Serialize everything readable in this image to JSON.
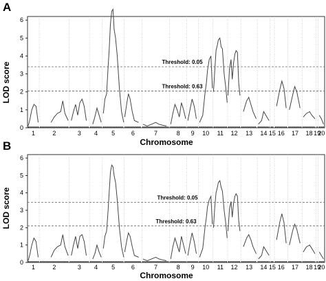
{
  "chart_data": [
    {
      "type": "line",
      "panel": "A",
      "ylabel": "LOD score",
      "xlabel": "Chromosome",
      "ylim": [
        0,
        6.2
      ],
      "yticks": [
        "0",
        "1",
        "2",
        "3",
        "4",
        "5",
        "6"
      ],
      "grid": "vertical dotted chromosome boundaries",
      "chromosomes": [
        "1",
        "2",
        "3",
        "4",
        "5",
        "6",
        "7",
        "8",
        "9",
        "10",
        "11",
        "12",
        "13",
        "14",
        "15",
        "16",
        "17",
        "18",
        "19",
        "20"
      ],
      "thresholds": [
        {
          "label": "Threshold: 0.05",
          "value": 3.4
        },
        {
          "label": "Threshold: 0.63",
          "value": 2.05
        }
      ],
      "series": [
        {
          "values": [
            [
              0.03,
              0.1
            ],
            [
              0.1,
              0.4
            ],
            [
              0.2,
              1.0
            ],
            [
              0.3,
              1.3
            ],
            [
              0.4,
              1.2
            ],
            [
              0.5,
              0.3
            ],
            [
              1.1,
              0.3
            ],
            [
              1.25,
              0.6
            ],
            [
              1.4,
              0.8
            ],
            [
              1.55,
              0.9
            ],
            [
              1.65,
              1.5
            ],
            [
              1.75,
              0.8
            ],
            [
              1.9,
              0.4
            ],
            [
              2.05,
              0.4
            ],
            [
              2.15,
              0.9
            ],
            [
              2.25,
              1.3
            ],
            [
              2.35,
              0.7
            ],
            [
              2.45,
              1.4
            ],
            [
              2.55,
              1.6
            ],
            [
              2.65,
              1.2
            ],
            [
              2.75,
              0.4
            ],
            [
              3.05,
              0.2
            ],
            [
              3.15,
              0.6
            ],
            [
              3.25,
              1.1
            ],
            [
              3.35,
              0.7
            ],
            [
              3.45,
              0.3
            ],
            [
              3.55,
              0.8
            ],
            [
              3.62,
              1.6
            ],
            [
              3.7,
              1.9
            ],
            [
              3.77,
              3.4
            ],
            [
              3.82,
              4.3
            ],
            [
              3.88,
              5.8
            ],
            [
              3.94,
              6.5
            ],
            [
              4.0,
              6.6
            ],
            [
              4.05,
              5.5
            ],
            [
              4.12,
              5.0
            ],
            [
              4.2,
              4.0
            ],
            [
              4.3,
              2.2
            ],
            [
              4.4,
              0.9
            ],
            [
              4.5,
              0.3
            ],
            [
              4.55,
              0.6
            ],
            [
              4.65,
              1.4
            ],
            [
              4.72,
              1.9
            ],
            [
              4.8,
              1.6
            ],
            [
              4.9,
              0.9
            ],
            [
              5.0,
              0.4
            ],
            [
              5.2,
              0.3
            ],
            [
              5.4,
              0.2
            ],
            [
              5.6,
              0.1
            ],
            [
              5.8,
              0.2
            ],
            [
              6.0,
              0.3
            ],
            [
              6.15,
              0.2
            ],
            [
              6.3,
              0.15
            ],
            [
              6.5,
              0.1
            ],
            [
              6.7,
              0.2
            ],
            [
              6.8,
              0.8
            ],
            [
              6.9,
              1.3
            ],
            [
              7.0,
              1.0
            ],
            [
              7.1,
              0.6
            ],
            [
              7.2,
              1.4
            ],
            [
              7.3,
              1.0
            ],
            [
              7.4,
              0.5
            ],
            [
              7.5,
              0.4
            ],
            [
              7.6,
              1.0
            ],
            [
              7.7,
              1.6
            ],
            [
              7.8,
              1.2
            ],
            [
              7.9,
              0.5
            ],
            [
              8.05,
              0.3
            ],
            [
              8.2,
              0.7
            ],
            [
              8.3,
              1.9
            ],
            [
              8.37,
              2.5
            ],
            [
              8.42,
              3.2
            ],
            [
              8.5,
              3.8
            ],
            [
              8.58,
              4.0
            ],
            [
              8.65,
              2.2
            ],
            [
              8.7,
              2.0
            ],
            [
              8.76,
              3.2
            ],
            [
              8.82,
              4.3
            ],
            [
              8.88,
              4.6
            ],
            [
              8.93,
              4.9
            ],
            [
              9.0,
              5.0
            ],
            [
              9.06,
              4.5
            ],
            [
              9.12,
              4.4
            ],
            [
              9.2,
              3.0
            ],
            [
              9.28,
              2.2
            ],
            [
              9.34,
              1.4
            ],
            [
              9.38,
              1.8
            ],
            [
              9.45,
              3.3
            ],
            [
              9.52,
              3.8
            ],
            [
              9.58,
              2.7
            ],
            [
              9.64,
              3.6
            ],
            [
              9.7,
              4.1
            ],
            [
              9.76,
              4.3
            ],
            [
              9.82,
              4.2
            ],
            [
              9.88,
              2.5
            ],
            [
              9.94,
              1.8
            ],
            [
              10.1,
              0.9
            ],
            [
              10.25,
              1.5
            ],
            [
              10.35,
              1.7
            ],
            [
              10.45,
              1.3
            ],
            [
              10.55,
              0.9
            ],
            [
              10.7,
              0.5
            ],
            [
              10.8,
              0.2
            ],
            [
              10.95,
              0.4
            ],
            [
              11.05,
              0.9
            ],
            [
              11.15,
              0.7
            ],
            [
              11.3,
              0.4
            ],
            [
              11.5,
              0.7
            ],
            [
              11.65,
              1.2
            ],
            [
              11.8,
              2.1
            ],
            [
              11.9,
              2.6
            ],
            [
              12.0,
              2.2
            ],
            [
              12.1,
              1.1
            ],
            [
              12.25,
              1.0
            ],
            [
              12.4,
              1.8
            ],
            [
              12.5,
              2.3
            ],
            [
              12.6,
              2.0
            ],
            [
              12.75,
              1.1
            ],
            [
              12.9,
              0.6
            ],
            [
              13.05,
              0.8
            ],
            [
              13.2,
              0.9
            ],
            [
              13.3,
              0.7
            ],
            [
              13.45,
              0.5
            ],
            [
              13.55,
              0.3
            ],
            [
              13.65,
              0.7
            ],
            [
              13.75,
              0.5
            ],
            [
              13.85,
              0.2
            ]
          ]
        }
      ]
    },
    {
      "type": "line",
      "panel": "B",
      "ylabel": "LOD score",
      "xlabel": "Chromosome",
      "ylim": [
        0,
        6.2
      ],
      "yticks": [
        "0",
        "1",
        "2",
        "3",
        "4",
        "5",
        "6"
      ],
      "grid": "vertical dotted chromosome boundaries",
      "chromosomes": [
        "1",
        "2",
        "3",
        "4",
        "5",
        "6",
        "7",
        "8",
        "9",
        "10",
        "11",
        "12",
        "13",
        "14",
        "15",
        "16",
        "17",
        "18",
        "19",
        "20"
      ],
      "thresholds": [
        {
          "label": "Threshold: 0.05",
          "value": 3.45
        },
        {
          "label": "Threshold: 0.63",
          "value": 2.1
        }
      ],
      "series": [
        {
          "values": [
            [
              0.03,
              0.1
            ],
            [
              0.1,
              0.4
            ],
            [
              0.2,
              1.0
            ],
            [
              0.3,
              1.4
            ],
            [
              0.4,
              1.2
            ],
            [
              0.5,
              0.3
            ],
            [
              1.1,
              0.3
            ],
            [
              1.25,
              0.7
            ],
            [
              1.4,
              0.9
            ],
            [
              1.55,
              1.0
            ],
            [
              1.65,
              1.6
            ],
            [
              1.75,
              0.9
            ],
            [
              1.9,
              0.4
            ],
            [
              2.05,
              0.4
            ],
            [
              2.15,
              1.0
            ],
            [
              2.25,
              1.5
            ],
            [
              2.35,
              0.8
            ],
            [
              2.45,
              1.5
            ],
            [
              2.55,
              1.6
            ],
            [
              2.65,
              1.2
            ],
            [
              2.75,
              0.4
            ],
            [
              3.05,
              0.2
            ],
            [
              3.15,
              0.5
            ],
            [
              3.25,
              1.0
            ],
            [
              3.35,
              0.6
            ],
            [
              3.45,
              0.3
            ],
            [
              3.55,
              0.8
            ],
            [
              3.62,
              1.5
            ],
            [
              3.7,
              1.8
            ],
            [
              3.77,
              3.0
            ],
            [
              3.82,
              4.0
            ],
            [
              3.88,
              5.2
            ],
            [
              3.94,
              5.6
            ],
            [
              4.0,
              5.5
            ],
            [
              4.05,
              5.0
            ],
            [
              4.12,
              4.6
            ],
            [
              4.2,
              3.6
            ],
            [
              4.3,
              2.0
            ],
            [
              4.4,
              0.9
            ],
            [
              4.5,
              0.3
            ],
            [
              4.55,
              0.6
            ],
            [
              4.65,
              1.3
            ],
            [
              4.72,
              1.7
            ],
            [
              4.8,
              1.5
            ],
            [
              4.9,
              0.9
            ],
            [
              5.0,
              0.4
            ],
            [
              5.2,
              0.3
            ],
            [
              5.4,
              0.2
            ],
            [
              5.6,
              0.1
            ],
            [
              5.8,
              0.2
            ],
            [
              6.0,
              0.3
            ],
            [
              6.15,
              0.2
            ],
            [
              6.3,
              0.15
            ],
            [
              6.5,
              0.1
            ],
            [
              6.7,
              0.2
            ],
            [
              6.8,
              0.9
            ],
            [
              6.9,
              1.4
            ],
            [
              7.0,
              1.0
            ],
            [
              7.1,
              0.6
            ],
            [
              7.2,
              1.5
            ],
            [
              7.3,
              1.0
            ],
            [
              7.4,
              0.5
            ],
            [
              7.5,
              0.4
            ],
            [
              7.6,
              1.1
            ],
            [
              7.7,
              1.7
            ],
            [
              7.8,
              1.2
            ],
            [
              7.9,
              0.5
            ],
            [
              8.05,
              0.3
            ],
            [
              8.2,
              0.8
            ],
            [
              8.3,
              2.0
            ],
            [
              8.37,
              2.6
            ],
            [
              8.42,
              3.2
            ],
            [
              8.5,
              3.6
            ],
            [
              8.58,
              3.8
            ],
            [
              8.65,
              2.2
            ],
            [
              8.7,
              2.0
            ],
            [
              8.76,
              3.2
            ],
            [
              8.82,
              4.0
            ],
            [
              8.88,
              4.3
            ],
            [
              8.93,
              4.6
            ],
            [
              9.0,
              4.7
            ],
            [
              9.06,
              4.3
            ],
            [
              9.12,
              4.1
            ],
            [
              9.2,
              3.0
            ],
            [
              9.28,
              2.2
            ],
            [
              9.34,
              1.4
            ],
            [
              9.38,
              1.8
            ],
            [
              9.45,
              3.1
            ],
            [
              9.52,
              3.5
            ],
            [
              9.58,
              2.6
            ],
            [
              9.64,
              3.4
            ],
            [
              9.7,
              3.8
            ],
            [
              9.76,
              3.95
            ],
            [
              9.82,
              3.8
            ],
            [
              9.88,
              2.4
            ],
            [
              9.94,
              1.8
            ],
            [
              10.1,
              0.9
            ],
            [
              10.25,
              1.4
            ],
            [
              10.35,
              1.6
            ],
            [
              10.45,
              1.3
            ],
            [
              10.55,
              0.9
            ],
            [
              10.7,
              0.5
            ],
            [
              10.8,
              0.2
            ],
            [
              10.95,
              0.4
            ],
            [
              11.05,
              0.9
            ],
            [
              11.15,
              0.7
            ],
            [
              11.3,
              0.4
            ],
            [
              11.5,
              0.7
            ],
            [
              11.65,
              1.3
            ],
            [
              11.8,
              2.3
            ],
            [
              11.9,
              2.8
            ],
            [
              12.0,
              2.3
            ],
            [
              12.1,
              1.1
            ],
            [
              12.25,
              1.0
            ],
            [
              12.4,
              1.8
            ],
            [
              12.5,
              2.2
            ],
            [
              12.6,
              1.9
            ],
            [
              12.75,
              1.1
            ],
            [
              12.9,
              0.6
            ],
            [
              13.05,
              0.9
            ],
            [
              13.2,
              1.0
            ],
            [
              13.3,
              0.8
            ],
            [
              13.45,
              0.5
            ],
            [
              13.55,
              0.2
            ],
            [
              13.65,
              0.6
            ],
            [
              13.75,
              0.4
            ],
            [
              13.85,
              0.2
            ]
          ]
        }
      ]
    }
  ],
  "chrom_bounds": [
    0,
    0.55,
    1.95,
    2.9,
    3.5,
    4.52,
    5.35,
    6.65,
    7.45,
    8.0,
    8.68,
    9.36,
    9.98,
    10.75,
    11.35,
    11.55,
    12.18,
    12.85,
    13.5,
    13.6,
    13.9
  ]
}
